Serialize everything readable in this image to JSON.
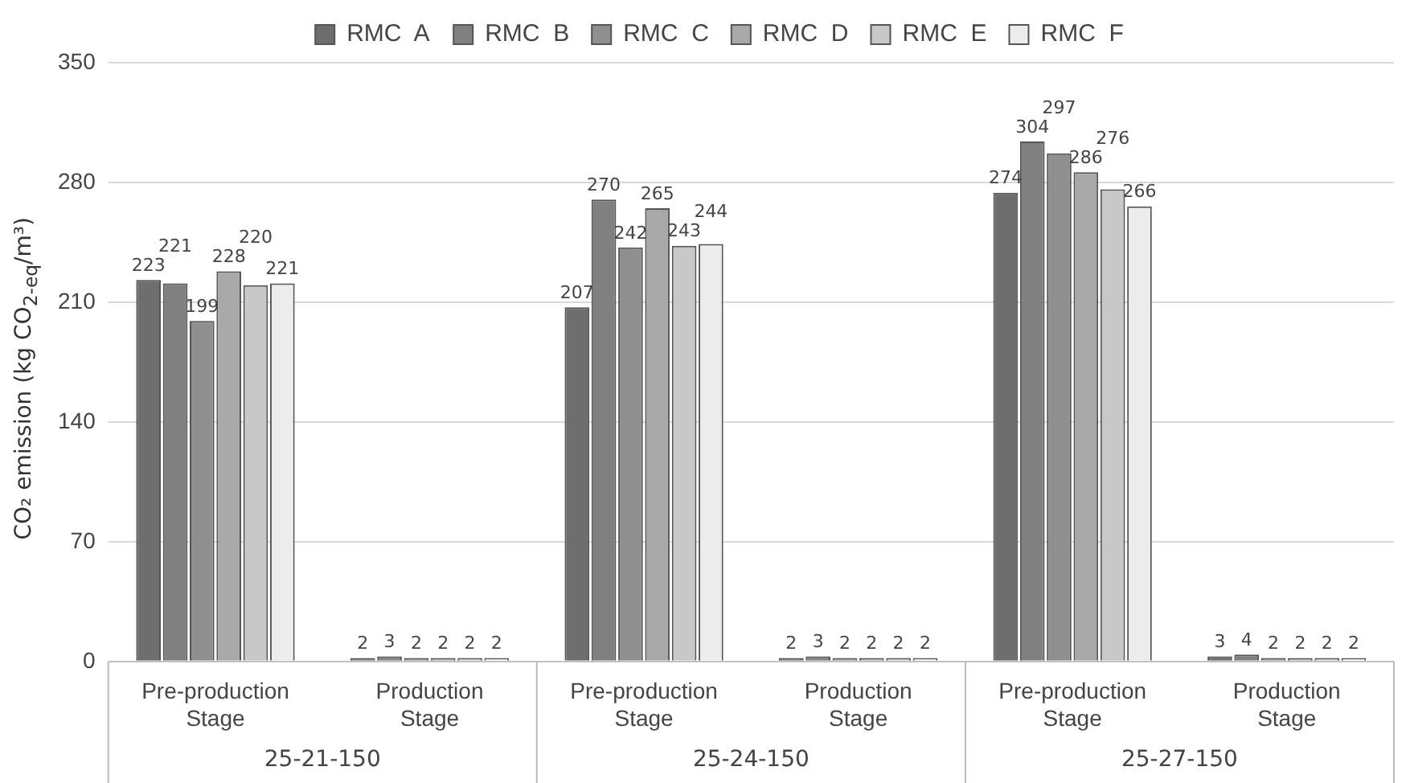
{
  "chart_data": {
    "type": "bar",
    "ylabel": "CO₂ emission (kg CO$_{2-eq}$/m³)",
    "categories": [
      "Pre-production Stage",
      "Production Stage",
      "Pre-production Stage",
      "Production Stage",
      "Pre-production Stage",
      "Production Stage"
    ],
    "annotations": [
      "25-21-150",
      "25-24-150",
      "25-27-150"
    ],
    "series": [
      {
        "name": "RMC  A",
        "color": "#6e6e6e",
        "values": [
          223,
          2,
          207,
          2,
          274,
          3
        ]
      },
      {
        "name": "RMC  B",
        "color": "#808080",
        "values": [
          221,
          3,
          270,
          3,
          304,
          4
        ]
      },
      {
        "name": "RMC  C",
        "color": "#8f8f8f",
        "values": [
          199,
          2,
          242,
          2,
          297,
          2
        ]
      },
      {
        "name": "RMC  D",
        "color": "#a8a8a8",
        "values": [
          228,
          2,
          265,
          2,
          286,
          2
        ]
      },
      {
        "name": "RMC  E",
        "color": "#c8c8c8",
        "values": [
          220,
          2,
          243,
          2,
          276,
          2
        ]
      },
      {
        "name": "RMC  F",
        "color": "#ececec",
        "values": [
          221,
          2,
          244,
          2,
          266,
          2
        ]
      }
    ],
    "ylim": [
      0,
      350
    ],
    "yticks": [
      0,
      70,
      140,
      210,
      280,
      350
    ],
    "grid": "y",
    "legend": "top",
    "data_labels": true
  }
}
